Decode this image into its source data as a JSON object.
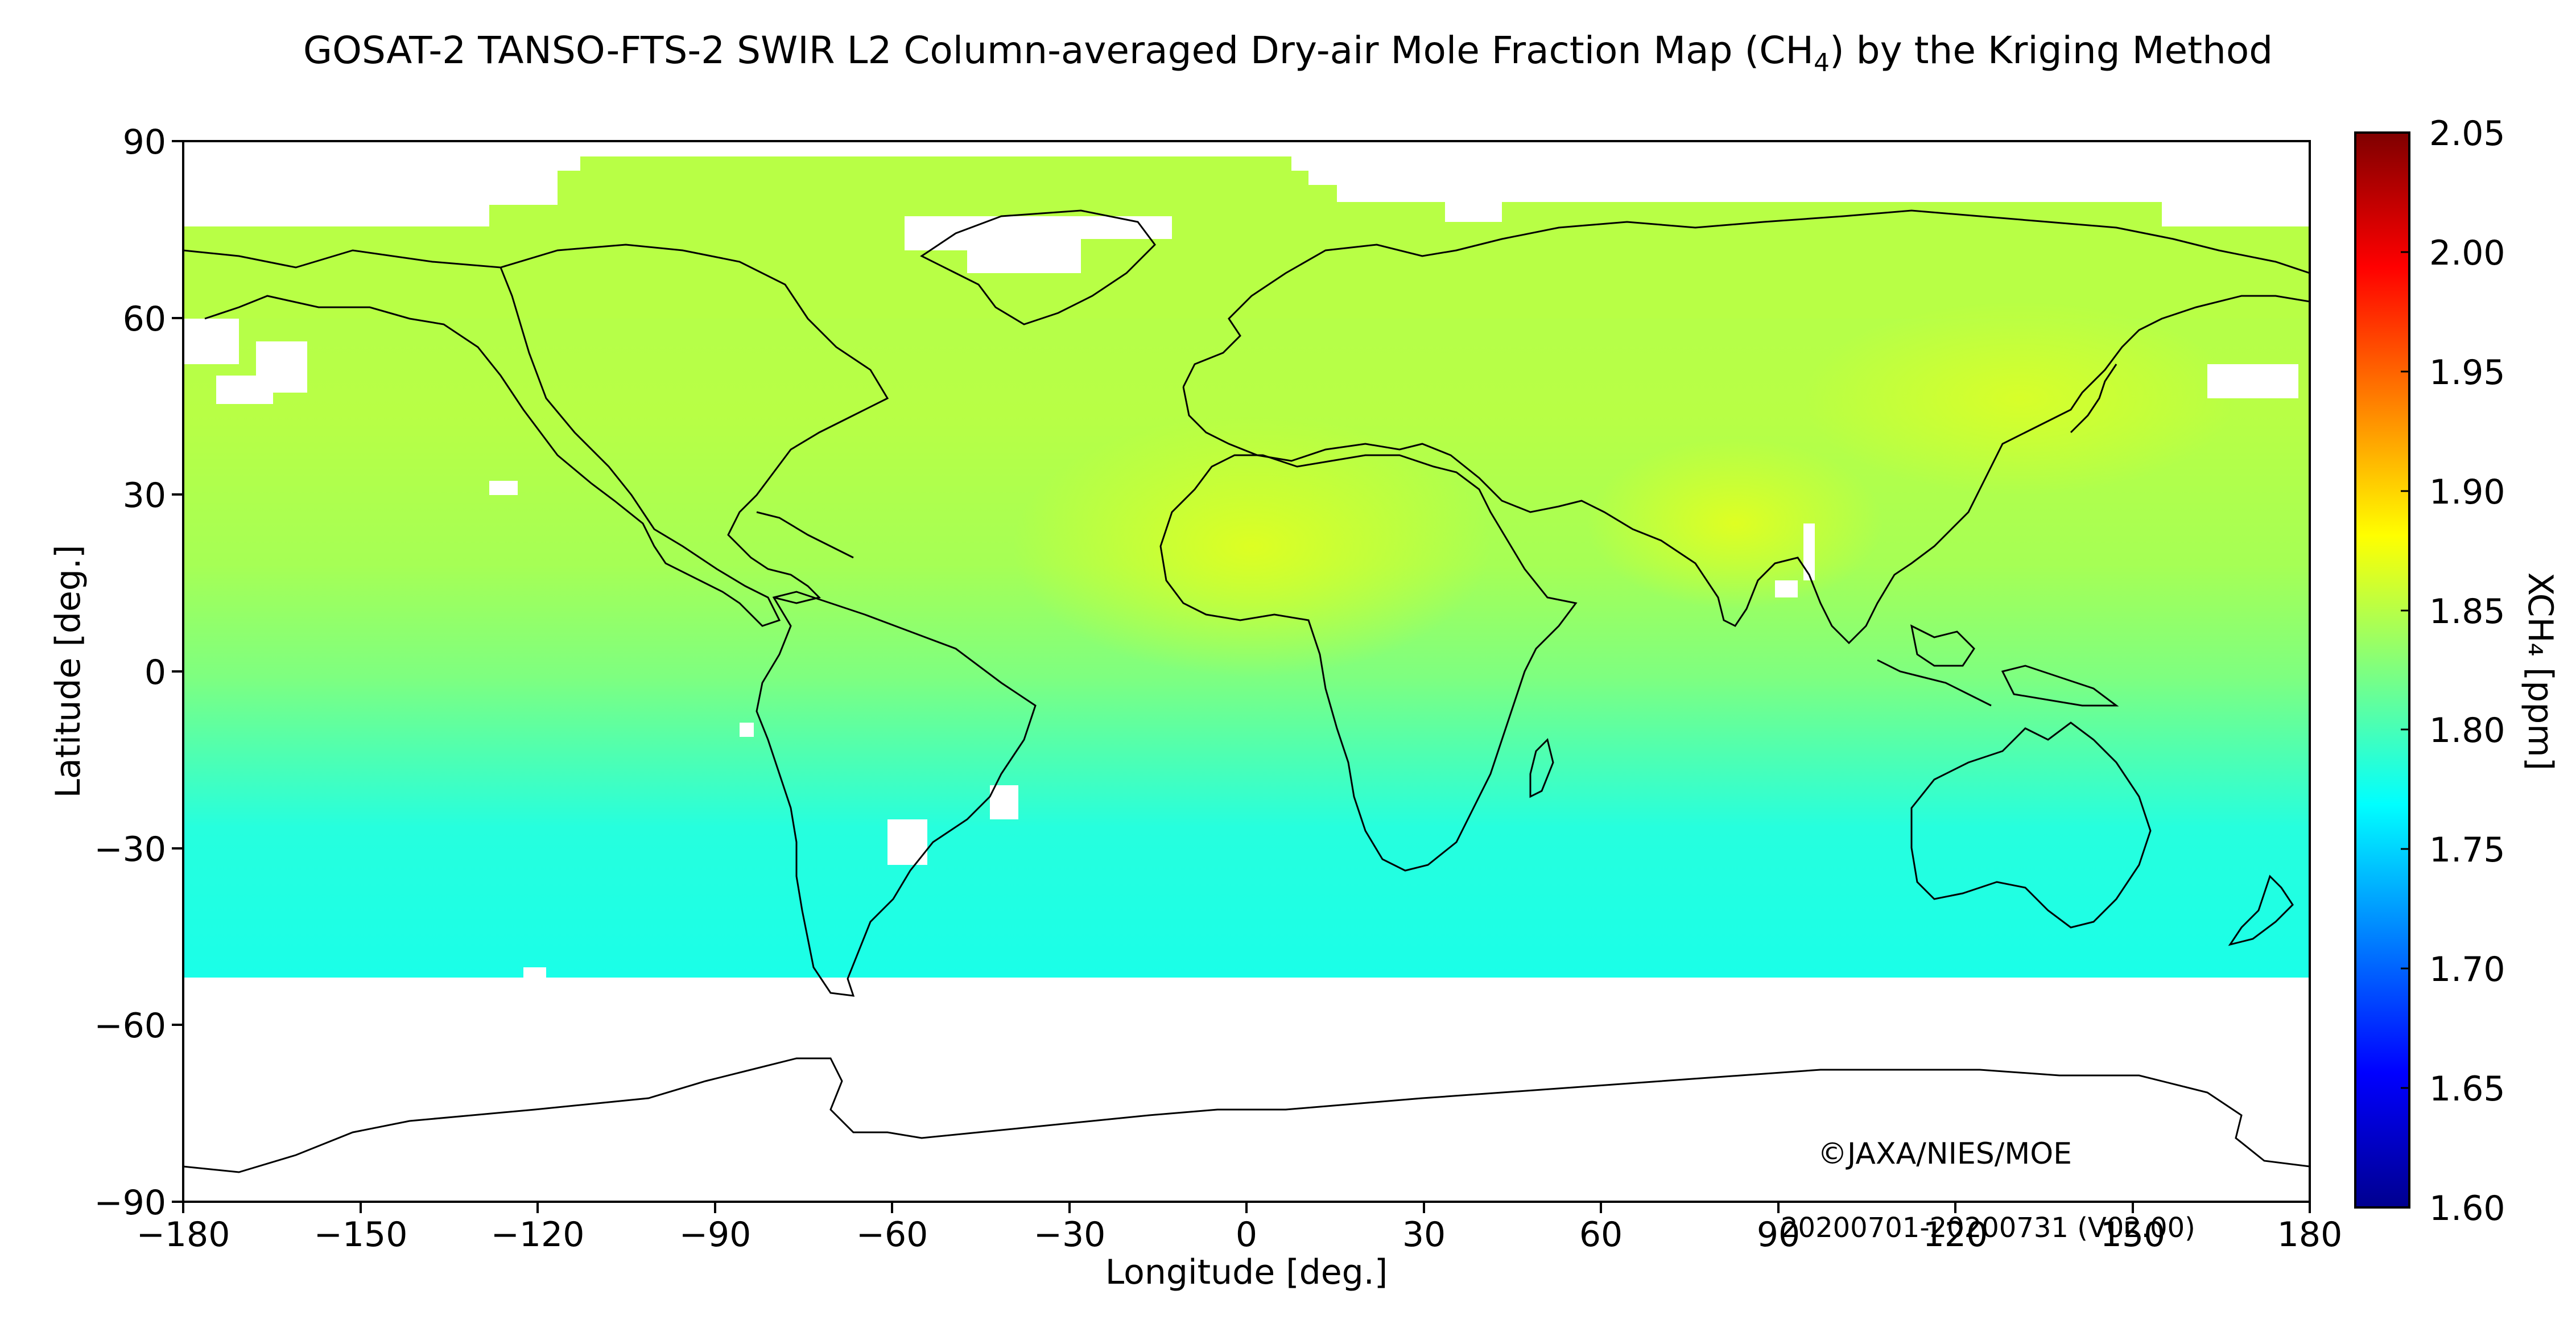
{
  "title": {
    "main": "GOSAT-2 TANSO-FTS-2 SWIR L2 Column-averaged Dry-air Mole Fraction Map (CH",
    "sub": "4",
    "tail": ") by the Kriging Method"
  },
  "axes": {
    "xlabel": "Longitude [deg.]",
    "ylabel": "Latitude [deg.]",
    "x_ticks": [
      "−180",
      "−150",
      "−120",
      "−90",
      "−60",
      "−30",
      "0",
      "30",
      "60",
      "90",
      "120",
      "150",
      "180"
    ],
    "y_ticks": [
      "90",
      "60",
      "30",
      "0",
      "−30",
      "−60",
      "−90"
    ],
    "xlim": [
      -180,
      180
    ],
    "ylim": [
      -90,
      90
    ]
  },
  "colorbar": {
    "label": "XCH₄ [ppm]",
    "ticks": [
      "2.05",
      "2.00",
      "1.95",
      "1.90",
      "1.85",
      "1.80",
      "1.75",
      "1.70",
      "1.65",
      "1.60"
    ],
    "range": [
      1.6,
      2.05
    ],
    "colormap": "jet"
  },
  "credit": "©JAXA/NIES/MOE",
  "period": "20200701-20200731 (V02.00)",
  "colors": {
    "land_outline": "#000000",
    "no_data": "#ffffff"
  }
}
